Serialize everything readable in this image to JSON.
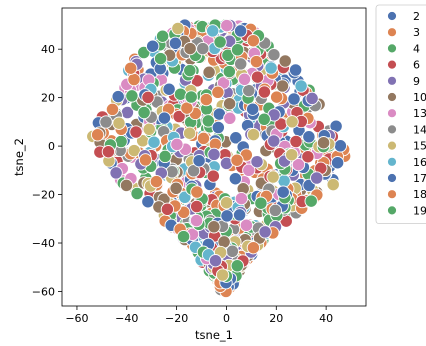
{
  "chart_data": {
    "type": "scatter",
    "title": "",
    "xlabel": "tsne_1",
    "ylabel": "tsne_2",
    "xlim": [
      -66,
      56
    ],
    "ylim": [
      -66,
      57
    ],
    "xticks": [
      -60,
      -40,
      -20,
      0,
      20,
      40
    ],
    "yticks": [
      -60,
      -40,
      -20,
      0,
      20,
      40
    ],
    "grid": false,
    "legend_position": "outside-right",
    "point_edge_color": "#ffffff",
    "series": [
      {
        "name": "2",
        "color": "#4c72b0"
      },
      {
        "name": "3",
        "color": "#dd8452"
      },
      {
        "name": "4",
        "color": "#55a868"
      },
      {
        "name": "6",
        "color": "#c44e52"
      },
      {
        "name": "9",
        "color": "#8172b3"
      },
      {
        "name": "10",
        "color": "#937860"
      },
      {
        "name": "13",
        "color": "#da8bc3"
      },
      {
        "name": "14",
        "color": "#8c8c8c"
      },
      {
        "name": "15",
        "color": "#ccb974"
      },
      {
        "name": "16",
        "color": "#64b5cd"
      },
      {
        "name": "17",
        "color": "#4c72b0"
      },
      {
        "name": "18",
        "color": "#dd8452"
      },
      {
        "name": "19",
        "color": "#55a868"
      }
    ],
    "cloud_shape": {
      "y_range": [
        -60,
        51
      ],
      "rows": [
        {
          "y": 50,
          "x": [
            -18,
            8
          ]
        },
        {
          "y": 45,
          "x": [
            -28,
            14
          ]
        },
        {
          "y": 40,
          "x": [
            -32,
            18
          ]
        },
        {
          "y": 35,
          "x": [
            -38,
            24
          ]
        },
        {
          "y": 30,
          "x": [
            -40,
            30
          ]
        },
        {
          "y": 25,
          "x": [
            -42,
            32
          ]
        },
        {
          "y": 20,
          "x": [
            -44,
            36
          ]
        },
        {
          "y": 15,
          "x": [
            -48,
            40
          ]
        },
        {
          "y": 10,
          "x": [
            -52,
            44
          ]
        },
        {
          "y": 5,
          "x": [
            -54,
            46
          ]
        },
        {
          "y": 0,
          "x": [
            -53,
            47
          ]
        },
        {
          "y": -5,
          "x": [
            -50,
            48
          ]
        },
        {
          "y": -10,
          "x": [
            -46,
            46
          ]
        },
        {
          "y": -15,
          "x": [
            -42,
            44
          ]
        },
        {
          "y": -20,
          "x": [
            -36,
            38
          ]
        },
        {
          "y": -25,
          "x": [
            -30,
            32
          ]
        },
        {
          "y": -30,
          "x": [
            -26,
            26
          ]
        },
        {
          "y": -35,
          "x": [
            -20,
            20
          ]
        },
        {
          "y": -40,
          "x": [
            -16,
            14
          ]
        },
        {
          "y": -45,
          "x": [
            -12,
            10
          ]
        },
        {
          "y": -50,
          "x": [
            -8,
            6
          ]
        },
        {
          "y": -55,
          "x": [
            -4,
            4
          ]
        },
        {
          "y": -60,
          "x": [
            -2,
            1
          ]
        }
      ]
    }
  }
}
